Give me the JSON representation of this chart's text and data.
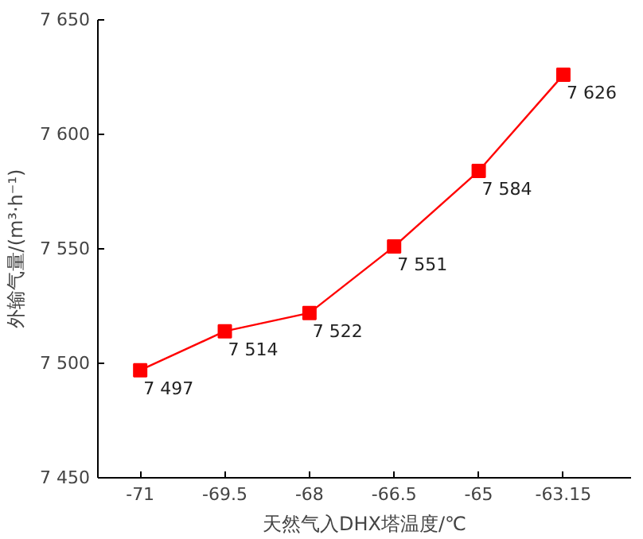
{
  "chart_data": {
    "type": "line",
    "xlabel": "天然气入DHX塔温度/℃",
    "ylabel": "外输气量/(m³·h⁻¹)",
    "categories": [
      "-71",
      "-69.5",
      "-68",
      "-66.5",
      "-65",
      "-63.15"
    ],
    "series": [
      {
        "color": "#ff0000",
        "values": [
          7497,
          7514,
          7522,
          7551,
          7584,
          7626
        ],
        "value_labels": [
          "7 497",
          "7 514",
          "7 522",
          "7 551",
          "7 584",
          "7 626"
        ]
      }
    ],
    "ylim": [
      7450,
      7650
    ],
    "yticks": [
      {
        "value": 7450,
        "label": "7 450"
      },
      {
        "value": 7500,
        "label": "7 500"
      },
      {
        "value": 7550,
        "label": "7 550"
      },
      {
        "value": 7600,
        "label": "7 600"
      },
      {
        "value": 7650,
        "label": "7 650"
      }
    ],
    "marker": "square",
    "line_style": "solid",
    "grid": false
  }
}
